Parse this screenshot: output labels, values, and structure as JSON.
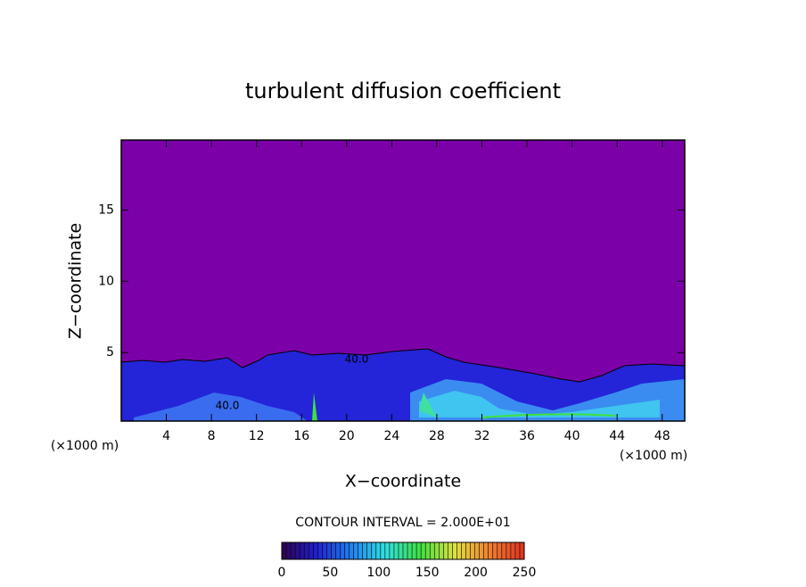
{
  "chart_data": {
    "type": "contour",
    "title": "turbulent diffusion coefficient",
    "x_label": "X−coordinate",
    "y_label": "Z−coordinate",
    "x_unit_label": "(×1000 m)",
    "contour_interval_label": "CONTOUR INTERVAL = 2.000E+01",
    "annotations": [
      "40.0",
      "40.0"
    ],
    "xlim": [
      0,
      50
    ],
    "xticks": [
      4,
      8,
      12,
      16,
      20,
      24,
      28,
      32,
      36,
      40,
      44,
      48
    ],
    "ylim": [
      0.2,
      19.9
    ],
    "yticks": [
      5,
      10,
      15
    ],
    "colorbar_lim": [
      0,
      250
    ],
    "colorbar_ticks": [
      0,
      50,
      100,
      150,
      200,
      250
    ],
    "colorscale": [
      "#300050",
      "#2020d0",
      "#2080f0",
      "#30e0e0",
      "#40e040",
      "#e0e040",
      "#f08030",
      "#e03020"
    ]
  }
}
